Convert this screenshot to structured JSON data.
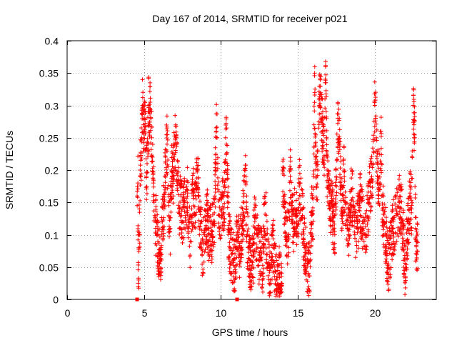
{
  "chart_data": {
    "type": "scatter",
    "title": "Day 167 of 2014, SRMTID for receiver p021",
    "xlabel": "GPS time / hours",
    "ylabel": "SRMTID / TECUs",
    "xlim": [
      0,
      24
    ],
    "ylim": [
      0,
      0.4
    ],
    "x_ticks": [
      0,
      5,
      10,
      15,
      20
    ],
    "x_tick_labels": [
      "0",
      "5",
      "10",
      "15",
      "20"
    ],
    "y_ticks": [
      0,
      0.05,
      0.1,
      0.15,
      0.2,
      0.25,
      0.3,
      0.35,
      0.4
    ],
    "y_tick_labels": [
      "0",
      "0.05",
      "0.1",
      "0.15",
      "0.2",
      "0.25",
      "0.3",
      "0.35",
      "0.4"
    ],
    "grid": true,
    "marker": "+",
    "color": "#ff0000",
    "zero_markers": [
      {
        "x": 4.55,
        "y": 0
      },
      {
        "x": 11.05,
        "y": 0
      }
    ],
    "series": [
      {
        "name": "SRMTID",
        "segments": [
          {
            "start": 4.55,
            "end": 6.0,
            "points": [
              [
                4.55,
                0.16
              ],
              [
                4.6,
                0.18
              ],
              [
                4.62,
                0.025
              ],
              [
                4.65,
                0.03
              ],
              [
                4.7,
                0.14
              ],
              [
                4.72,
                0.087
              ],
              [
                4.75,
                0.2
              ],
              [
                4.8,
                0.22
              ],
              [
                4.85,
                0.25
              ],
              [
                4.9,
                0.3
              ],
              [
                4.95,
                0.27
              ],
              [
                5.0,
                0.26
              ],
              [
                5.05,
                0.28
              ],
              [
                5.1,
                0.23
              ],
              [
                5.15,
                0.19
              ],
              [
                5.2,
                0.21
              ],
              [
                5.25,
                0.24
              ],
              [
                5.3,
                0.3
              ],
              [
                5.35,
                0.29
              ],
              [
                5.4,
                0.305
              ],
              [
                5.45,
                0.28
              ],
              [
                5.5,
                0.25
              ],
              [
                5.55,
                0.22
              ],
              [
                5.6,
                0.18
              ],
              [
                5.65,
                0.15
              ],
              [
                5.7,
                0.13
              ],
              [
                5.75,
                0.11
              ],
              [
                5.8,
                0.12
              ],
              [
                5.85,
                0.1
              ],
              [
                5.9,
                0.09
              ],
              [
                5.95,
                0.07
              ]
            ]
          },
          {
            "start": 6.0,
            "end": 9.6,
            "points": [
              [
                6.0,
                0.055
              ],
              [
                6.1,
                0.08
              ],
              [
                6.2,
                0.12
              ],
              [
                6.3,
                0.14
              ],
              [
                6.4,
                0.22
              ],
              [
                6.5,
                0.24
              ],
              [
                6.6,
                0.15
              ],
              [
                6.7,
                0.11
              ],
              [
                6.8,
                0.2
              ],
              [
                6.9,
                0.19
              ],
              [
                7.0,
                0.24
              ],
              [
                7.1,
                0.25
              ],
              [
                7.2,
                0.18
              ],
              [
                7.3,
                0.14
              ],
              [
                7.4,
                0.16
              ],
              [
                7.5,
                0.12
              ],
              [
                7.6,
                0.15
              ],
              [
                7.7,
                0.13
              ],
              [
                7.8,
                0.17
              ],
              [
                7.9,
                0.11
              ],
              [
                8.0,
                0.09
              ],
              [
                8.1,
                0.14
              ],
              [
                8.2,
                0.16
              ],
              [
                8.3,
                0.13
              ],
              [
                8.4,
                0.18
              ],
              [
                8.5,
                0.2
              ],
              [
                8.6,
                0.1
              ],
              [
                8.7,
                0.12
              ],
              [
                8.8,
                0.075
              ],
              [
                8.9,
                0.09
              ],
              [
                9.0,
                0.11
              ],
              [
                9.1,
                0.13
              ],
              [
                9.2,
                0.09
              ],
              [
                9.3,
                0.12
              ],
              [
                9.4,
                0.1
              ],
              [
                9.5,
                0.115
              ]
            ]
          },
          {
            "start": 9.6,
            "end": 11.2,
            "points": [
              [
                9.6,
                0.16
              ],
              [
                9.65,
                0.2
              ],
              [
                9.7,
                0.26
              ],
              [
                9.75,
                0.25
              ],
              [
                9.8,
                0.17
              ],
              [
                9.9,
                0.13
              ],
              [
                10.0,
                0.14
              ],
              [
                10.1,
                0.16
              ],
              [
                10.2,
                0.12
              ],
              [
                10.3,
                0.25
              ],
              [
                10.35,
                0.24
              ],
              [
                10.4,
                0.2
              ],
              [
                10.5,
                0.1
              ],
              [
                10.6,
                0.08
              ],
              [
                10.7,
                0.07
              ],
              [
                10.8,
                0.06
              ],
              [
                10.9,
                0.05
              ],
              [
                11.0,
                0.09
              ],
              [
                11.1,
                0.1
              ]
            ]
          },
          {
            "start": 11.2,
            "end": 14.0,
            "points": [
              [
                11.2,
                0.07
              ],
              [
                11.3,
                0.09
              ],
              [
                11.4,
                0.12
              ],
              [
                11.5,
                0.15
              ],
              [
                11.6,
                0.18
              ],
              [
                11.7,
                0.1
              ],
              [
                11.8,
                0.08
              ],
              [
                11.9,
                0.06
              ],
              [
                12.0,
                0.05
              ],
              [
                12.1,
                0.07
              ],
              [
                12.2,
                0.12
              ],
              [
                12.3,
                0.1
              ],
              [
                12.4,
                0.08
              ],
              [
                12.5,
                0.06
              ],
              [
                12.6,
                0.09
              ],
              [
                12.7,
                0.04
              ],
              [
                12.8,
                0.11
              ],
              [
                12.9,
                0.15
              ],
              [
                13.0,
                0.07
              ],
              [
                13.1,
                0.05
              ],
              [
                13.2,
                0.03
              ],
              [
                13.3,
                0.06
              ],
              [
                13.4,
                0.08
              ],
              [
                13.5,
                0.05
              ],
              [
                13.6,
                0.03
              ],
              [
                13.7,
                0.02
              ],
              [
                13.8,
                0.04
              ],
              [
                13.9,
                0.012
              ]
            ]
          },
          {
            "start": 14.0,
            "end": 16.0,
            "points": [
              [
                14.0,
                0.2
              ],
              [
                14.1,
                0.16
              ],
              [
                14.2,
                0.12
              ],
              [
                14.3,
                0.09
              ],
              [
                14.4,
                0.1
              ],
              [
                14.5,
                0.2
              ],
              [
                14.6,
                0.15
              ],
              [
                14.7,
                0.11
              ],
              [
                14.8,
                0.14
              ],
              [
                14.9,
                0.13
              ],
              [
                15.0,
                0.12
              ],
              [
                15.1,
                0.18
              ],
              [
                15.2,
                0.16
              ],
              [
                15.3,
                0.13
              ],
              [
                15.4,
                0.09
              ],
              [
                15.5,
                0.07
              ],
              [
                15.6,
                0.05
              ],
              [
                15.7,
                0.04
              ],
              [
                15.8,
                0.06
              ],
              [
                15.9,
                0.13
              ]
            ]
          },
          {
            "start": 16.0,
            "end": 19.0,
            "points": [
              [
                16.0,
                0.17
              ],
              [
                16.05,
                0.27
              ],
              [
                16.1,
                0.32
              ],
              [
                16.15,
                0.22
              ],
              [
                16.2,
                0.19
              ],
              [
                16.3,
                0.2
              ],
              [
                16.4,
                0.3
              ],
              [
                16.45,
                0.33
              ],
              [
                16.5,
                0.31
              ],
              [
                16.6,
                0.26
              ],
              [
                16.7,
                0.22
              ],
              [
                16.8,
                0.36
              ],
              [
                16.9,
                0.2
              ],
              [
                17.0,
                0.17
              ],
              [
                17.1,
                0.14
              ],
              [
                17.2,
                0.16
              ],
              [
                17.3,
                0.12
              ],
              [
                17.4,
                0.1
              ],
              [
                17.5,
                0.19
              ],
              [
                17.6,
                0.28
              ],
              [
                17.7,
                0.24
              ],
              [
                17.8,
                0.17
              ],
              [
                17.9,
                0.13
              ],
              [
                18.0,
                0.2
              ],
              [
                18.1,
                0.15
              ],
              [
                18.2,
                0.11
              ],
              [
                18.3,
                0.1
              ],
              [
                18.4,
                0.14
              ],
              [
                18.5,
                0.17
              ],
              [
                18.6,
                0.13
              ],
              [
                18.7,
                0.1
              ],
              [
                18.8,
                0.09
              ],
              [
                18.9,
                0.12
              ]
            ]
          },
          {
            "start": 19.0,
            "end": 22.8,
            "points": [
              [
                19.0,
                0.16
              ],
              [
                19.2,
                0.12
              ],
              [
                19.4,
                0.1
              ],
              [
                19.6,
                0.15
              ],
              [
                19.8,
                0.19
              ],
              [
                19.9,
                0.21
              ],
              [
                20.0,
                0.3
              ],
              [
                20.05,
                0.28
              ],
              [
                20.1,
                0.25
              ],
              [
                20.2,
                0.19
              ],
              [
                20.3,
                0.17
              ],
              [
                20.4,
                0.26
              ],
              [
                20.5,
                0.14
              ],
              [
                20.6,
                0.12
              ],
              [
                20.7,
                0.1
              ],
              [
                20.8,
                0.07
              ],
              [
                20.9,
                0.05
              ],
              [
                21.0,
                0.08
              ],
              [
                21.2,
                0.11
              ],
              [
                21.4,
                0.13
              ],
              [
                21.6,
                0.15
              ],
              [
                21.8,
                0.12
              ],
              [
                22.0,
                0.035
              ],
              [
                22.1,
                0.09
              ],
              [
                22.2,
                0.12
              ],
              [
                22.3,
                0.16
              ],
              [
                22.4,
                0.14
              ],
              [
                22.5,
                0.3
              ],
              [
                22.55,
                0.27
              ],
              [
                22.6,
                0.25
              ],
              [
                22.65,
                0.11
              ],
              [
                22.7,
                0.09
              ]
            ]
          }
        ]
      }
    ]
  }
}
